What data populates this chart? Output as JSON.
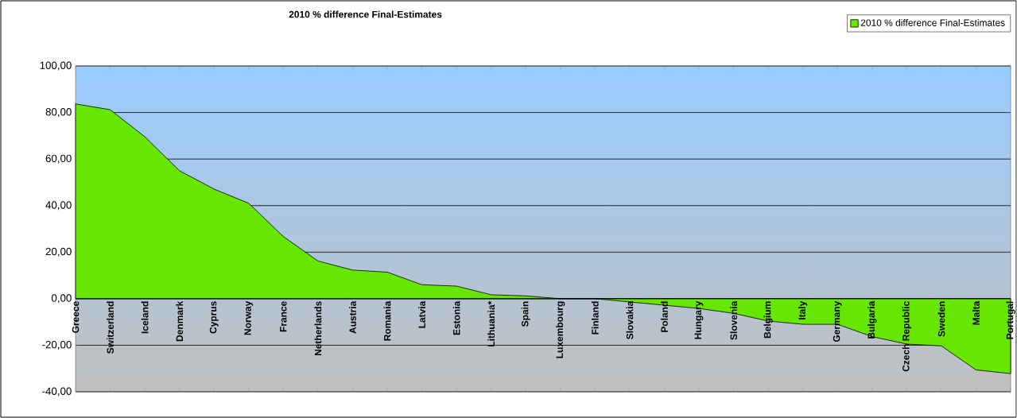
{
  "chart_data": {
    "type": "area",
    "title": "2010 % difference Final-Estimates",
    "categories": [
      "Greece",
      "Switzerland",
      "Iceland",
      "Denmark",
      "Cyprus",
      "Norway",
      "France",
      "Netherlands",
      "Austria",
      "Romania",
      "Latvia",
      "Estonia",
      "Lithuania*",
      "Spain",
      "Luxembourg",
      "Finland",
      "Slovakia",
      "Poland",
      "Hungary",
      "Slovenia",
      "Belgium",
      "Italy",
      "Germany",
      "Bulgaria",
      "Czech Republic",
      "Sweden",
      "Malta",
      "Portugal"
    ],
    "series": [
      {
        "name": "2010 % difference Final-Estimates",
        "color": "#66e600",
        "values": [
          83.7,
          81.2,
          69.6,
          55.0,
          47.1,
          41.0,
          26.7,
          16.2,
          12.3,
          11.4,
          6.0,
          5.4,
          1.7,
          1.2,
          0,
          0,
          -1.4,
          -2.8,
          -4.2,
          -6.3,
          -9.6,
          -11.0,
          -11.0,
          -16.3,
          -19.5,
          -20.3,
          -30.6,
          -32.2
        ]
      }
    ],
    "ylim": [
      -40,
      100
    ],
    "yticks": [
      {
        "value": -40,
        "label": "-40,00"
      },
      {
        "value": -20,
        "label": "-20,00"
      },
      {
        "value": 0,
        "label": "0,00"
      },
      {
        "value": 20,
        "label": "20,00"
      },
      {
        "value": 40,
        "label": "40,00"
      },
      {
        "value": 60,
        "label": "60,00"
      },
      {
        "value": 80,
        "label": "80,00"
      },
      {
        "value": 100,
        "label": "100,00"
      }
    ],
    "grid": "y",
    "legend": "top right"
  }
}
